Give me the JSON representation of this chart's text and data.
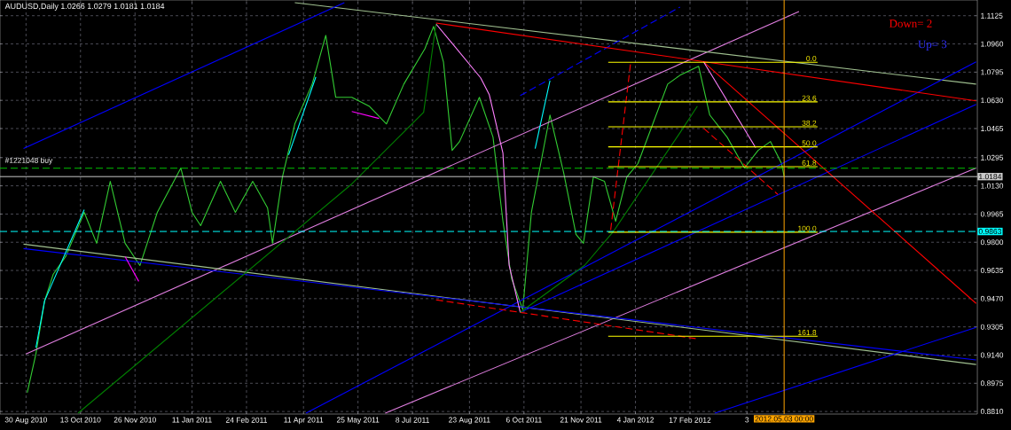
{
  "chart_data": {
    "type": "line",
    "title": "AUDUSD,Daily  1.0266 1.0279 1.0181 1.0184",
    "xlim": [
      "2010-08-09",
      "2012-10-06"
    ],
    "ylim": [
      0.8795,
      1.1217
    ],
    "grid": true,
    "xticks": [
      {
        "value": "2010-08-30",
        "label": "30 Aug 2010"
      },
      {
        "value": "2010-10-13",
        "label": "13 Oct 2010"
      },
      {
        "value": "2010-11-26",
        "label": "26 Nov 2010"
      },
      {
        "value": "2011-01-11",
        "label": "11 Jan 2011"
      },
      {
        "value": "2011-02-24",
        "label": "24 Feb 2011"
      },
      {
        "value": "2011-04-11",
        "label": "11 Apr 2011"
      },
      {
        "value": "2011-05-25",
        "label": "25 May 2011"
      },
      {
        "value": "2011-07-08",
        "label": "8 Jul 2011"
      },
      {
        "value": "2011-08-23",
        "label": "23 Aug 2011"
      },
      {
        "value": "2011-10-06",
        "label": "6 Oct 2011"
      },
      {
        "value": "2011-11-21",
        "label": "21 Nov 2011"
      },
      {
        "value": "2012-01-04",
        "label": "4 Jan 2012"
      },
      {
        "value": "2012-02-17",
        "label": "17 Feb 2012"
      },
      {
        "value": "2012-04-03",
        "label": "3"
      }
    ],
    "yticks": [
      1.1125,
      {
        "value": 1.096,
        "label": "1.0960"
      },
      1.0795,
      {
        "value": 1.063,
        "label": "1.0630"
      },
      1.0465,
      1.0295,
      {
        "value": 1.013,
        "label": "1.0130"
      },
      0.9965,
      {
        "value": 0.98,
        "label": "0.9800"
      },
      0.9635,
      {
        "value": 0.947,
        "label": "0.9470"
      },
      0.9305,
      {
        "value": 0.914,
        "label": "0.9140"
      },
      0.8975,
      {
        "value": 0.881,
        "label": "0.8810"
      }
    ],
    "series": [
      {
        "color": "#33cc33",
        "x": [
          "2010-08-31",
          "2010-09-07",
          "2010-09-14",
          "2010-09-21",
          "2010-10-01",
          "2010-10-16",
          "2010-10-26",
          "2010-11-06",
          "2010-11-18",
          "2010-11-30",
          "2010-12-14",
          "2011-01-02",
          "2011-01-11",
          "2011-01-18",
          "2011-02-03",
          "2011-02-15",
          "2011-03-01",
          "2011-03-13",
          "2011-03-17",
          "2011-03-25",
          "2011-04-04",
          "2011-04-18",
          "2011-04-29",
          "2011-05-07",
          "2011-05-20",
          "2011-06-03",
          "2011-06-17",
          "2011-07-01",
          "2011-07-18",
          "2011-07-25",
          "2011-08-02",
          "2011-08-09",
          "2011-08-15",
          "2011-08-31",
          "2011-09-11",
          "2011-09-19",
          "2011-09-26",
          "2011-10-05",
          "2011-10-12",
          "2011-10-27",
          "2011-11-07",
          "2011-11-17",
          "2011-11-23",
          "2011-12-01",
          "2011-12-10",
          "2011-12-19",
          "2011-12-28",
          "2012-01-06",
          "2012-01-18",
          "2012-01-30",
          "2012-02-09",
          "2012-02-24",
          "2012-03-04",
          "2012-03-18",
          "2012-04-01",
          "2012-04-12",
          "2012-04-22",
          "2012-05-01",
          "2012-05-03"
        ],
        "values": [
          0.892,
          0.9147,
          0.9457,
          0.9613,
          0.9716,
          0.9975,
          0.9794,
          1.0156,
          0.9794,
          0.9664,
          0.9975,
          1.0234,
          0.9975,
          0.9897,
          1.0156,
          0.9975,
          1.0156,
          1.0001,
          0.9794,
          1.0182,
          1.0492,
          1.0725,
          1.101,
          1.0648,
          1.0648,
          1.0596,
          1.0492,
          1.0725,
          1.0932,
          1.1062,
          1.0855,
          1.0337,
          1.0389,
          1.0648,
          1.0415,
          0.9923,
          0.9587,
          0.9406,
          0.9975,
          1.0544,
          1.0208,
          0.9846,
          0.9794,
          1.0182,
          1.0156,
          0.9923,
          1.0182,
          1.026,
          1.0492,
          1.0725,
          1.0777,
          1.0829,
          1.0544,
          1.0415,
          1.0234,
          1.0337,
          1.0389,
          1.026,
          1.0184
        ]
      },
      {
        "color": "#e07ee0",
        "x": [
          "2010-08-30",
          "2012-05-15"
        ],
        "values": [
          0.9147,
          1.115
        ]
      },
      {
        "color": "#e07ee0",
        "x": [
          "2011-06-16",
          "2012-10-05"
        ],
        "values": [
          0.88,
          1.0234
        ]
      },
      {
        "color": "#a0c090",
        "x": [
          "2011-04-04",
          "2012-10-05"
        ],
        "values": [
          1.1201,
          1.0725
        ]
      },
      {
        "color": "#a0c090",
        "x": [
          "2010-08-28",
          "2012-10-05"
        ],
        "values": [
          0.9789,
          0.9085
        ]
      },
      {
        "color": "#0000ff",
        "x": [
          "2010-08-28",
          "2012-10-05"
        ],
        "values": [
          0.9763,
          0.9111
        ]
      },
      {
        "color": "#0000ff",
        "x": [
          "2010-08-28",
          "2011-05-14"
        ],
        "values": [
          1.0348,
          1.1201
        ]
      },
      {
        "color": "#0000ff",
        "line_style": "dashed",
        "x": [
          "2011-10-03",
          "2012-02-09"
        ],
        "values": [
          1.0658,
          1.1176
        ]
      },
      {
        "color": "#0000ff",
        "x": [
          "2011-04-13",
          "2012-10-05"
        ],
        "values": [
          0.88,
          1.0855
        ]
      },
      {
        "color": "#0000ff",
        "x": [
          "2011-10-03",
          "2012-10-05"
        ],
        "values": [
          0.939,
          1.0606
        ]
      },
      {
        "color": "#0000ff",
        "x": [
          "2012-03-08",
          "2012-10-05"
        ],
        "values": [
          0.88,
          0.9302
        ]
      },
      {
        "color": "#ff0000",
        "x": [
          "2011-07-27",
          "2012-10-05"
        ],
        "values": [
          1.1082,
          1.0627
        ]
      },
      {
        "color": "#ff0000",
        "line_style": "dashed",
        "x": [
          "2011-07-27",
          "2012-02-23"
        ],
        "values": [
          0.9463,
          0.9235
        ]
      },
      {
        "color": "#ff0000",
        "x": [
          "2012-02-28",
          "2012-10-05"
        ],
        "values": [
          1.0855,
          0.9442
        ]
      },
      {
        "color": "#ff0000",
        "line_style": "dashed",
        "x": [
          "2011-12-15",
          "2011-12-31"
        ],
        "values": [
          0.9872,
          1.0844
        ]
      },
      {
        "color": "#ff0000",
        "line_style": "dashed",
        "x": [
          "2012-02-28",
          "2012-04-28"
        ],
        "values": [
          1.0467,
          1.0079
        ]
      },
      {
        "color": "#ff80ff",
        "x": [
          "2011-07-27",
          "2011-09-01",
          "2011-09-08",
          "2011-09-19",
          "2011-09-24",
          "2011-10-03"
        ],
        "values": [
          1.1077,
          1.0762,
          1.0663,
          1.0322,
          0.9665,
          0.939
        ]
      },
      {
        "color": "#ff80ff",
        "x": [
          "2012-02-28",
          "2012-04-10"
        ],
        "values": [
          1.0855,
          1.0353
        ]
      },
      {
        "color": "#008000",
        "x": [
          "2010-10-11",
          "2011-05-20",
          "2011-07-17",
          "2011-07-27"
        ],
        "values": [
          0.88,
          1.0141,
          1.056,
          1.1077
        ]
      },
      {
        "color": "#008000",
        "x": [
          "2011-10-03",
          "2011-11-24",
          "2011-12-17",
          "2012-02-09",
          "2012-02-23"
        ],
        "values": [
          0.939,
          0.9665,
          0.9861,
          1.0441,
          1.0596
        ]
      },
      {
        "color": "#00ffff",
        "x": [
          "2010-09-07",
          "2010-09-14",
          "2010-10-16"
        ],
        "values": [
          0.9183,
          0.9457,
          0.999
        ]
      },
      {
        "color": "#00ffff",
        "x": [
          "2011-03-30",
          "2011-04-21"
        ],
        "values": [
          1.0311,
          1.0767
        ]
      },
      {
        "color": "#00ffff",
        "x": [
          "2011-10-15",
          "2011-10-27"
        ],
        "values": [
          1.0348,
          1.0746
        ]
      },
      {
        "color": "#ff00ff",
        "x": [
          "2010-11-18",
          "2010-11-29"
        ],
        "values": [
          0.9716,
          0.9571
        ]
      },
      {
        "color": "#ff00ff",
        "x": [
          "2011-05-20",
          "2011-06-11"
        ],
        "values": [
          1.0565,
          1.0524
        ]
      },
      {
        "color": "#ffff00",
        "x": [
          "2011-12-13",
          "2012-05-30"
        ],
        "values": [
          1.0853,
          1.0853
        ]
      },
      {
        "color": "#ffff00",
        "x": [
          "2011-12-13",
          "2012-05-30"
        ],
        "values": [
          1.0621,
          1.0621
        ]
      },
      {
        "color": "#ffff00",
        "x": [
          "2011-12-13",
          "2012-05-30"
        ],
        "values": [
          1.0475,
          1.0475
        ]
      },
      {
        "color": "#ffff00",
        "x": [
          "2011-12-13",
          "2012-05-30"
        ],
        "values": [
          1.0358,
          1.0358
        ]
      },
      {
        "color": "#ffff00",
        "x": [
          "2011-12-13",
          "2012-05-30"
        ],
        "values": [
          1.0242,
          1.0242
        ]
      },
      {
        "color": "#ffff00",
        "x": [
          "2011-12-13",
          "2012-05-30"
        ],
        "values": [
          0.9859,
          0.9859
        ]
      },
      {
        "color": "#ffff00",
        "x": [
          "2011-12-13",
          "2012-05-30"
        ],
        "values": [
          0.925,
          0.925
        ]
      }
    ],
    "ref_lines": [
      {
        "axis": "y",
        "value": 1.0184,
        "label": "1.0184",
        "color": "#c8c8c8",
        "line_style": "solid"
      },
      {
        "axis": "y",
        "value": 0.9863,
        "label": "0.9863",
        "color": "#00ffff",
        "line_style": "dashed"
      },
      {
        "axis": "y",
        "value": 1.0233,
        "color": "#00c000",
        "line_style": "dashed"
      },
      {
        "axis": "x",
        "value": "2012-05-03",
        "label": "2012.05.03 00:00",
        "color": "#ffa500",
        "line_style": "solid"
      }
    ],
    "annotations": [
      "Down= 2",
      "Up= 3",
      "#1221048 buy",
      {
        "text": "0.0",
        "x": "2012-05-30",
        "y": 1.0853
      },
      {
        "text": "23.6",
        "x": "2012-05-30",
        "y": 1.0621
      },
      {
        "text": "38.2",
        "x": "2012-05-30",
        "y": 1.0475
      },
      {
        "text": "50.0",
        "x": "2012-05-30",
        "y": 1.0358
      },
      {
        "text": "61.8",
        "x": "2012-05-30",
        "y": 1.0242
      },
      {
        "text": "100.0",
        "x": "2012-05-30",
        "y": 0.9859
      },
      {
        "text": "161.8",
        "x": "2012-05-30",
        "y": 0.925
      }
    ]
  }
}
